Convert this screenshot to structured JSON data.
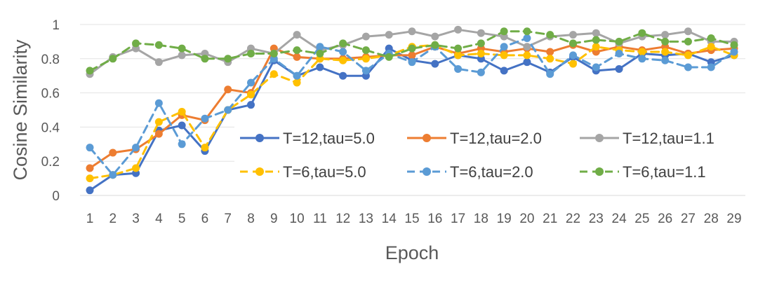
{
  "chart_data": {
    "type": "line",
    "xlabel": "Epoch",
    "ylabel": "Cosine Similarity",
    "ylim": [
      0,
      1
    ],
    "yticks": [
      "0",
      "0.2",
      "0.4",
      "0.6",
      "0.8",
      "1"
    ],
    "x": [
      1,
      2,
      3,
      4,
      5,
      6,
      7,
      8,
      9,
      10,
      11,
      12,
      13,
      14,
      15,
      16,
      17,
      18,
      19,
      20,
      21,
      22,
      23,
      24,
      25,
      26,
      27,
      28,
      29
    ],
    "grid": "horizontal",
    "legend_position": "inside, lower right",
    "series": [
      {
        "name": "T=12,tau=5.0",
        "color": "#4472C4",
        "dash": "solid",
        "values": [
          0.03,
          0.12,
          0.13,
          0.38,
          0.41,
          0.26,
          0.5,
          0.53,
          0.79,
          0.7,
          0.75,
          0.7,
          0.7,
          0.86,
          0.79,
          0.77,
          0.82,
          0.8,
          0.73,
          0.78,
          0.72,
          0.81,
          0.73,
          0.74,
          0.83,
          0.82,
          0.83,
          0.78,
          0.82
        ]
      },
      {
        "name": "T=12,tau=2.0",
        "color": "#ED7D31",
        "dash": "solid",
        "values": [
          0.16,
          0.25,
          0.27,
          0.36,
          0.47,
          0.44,
          0.62,
          0.6,
          0.86,
          0.81,
          0.8,
          0.8,
          0.81,
          0.82,
          0.82,
          0.87,
          0.83,
          0.86,
          0.84,
          0.86,
          0.84,
          0.88,
          0.84,
          0.87,
          0.85,
          0.87,
          0.83,
          0.85,
          0.86
        ]
      },
      {
        "name": "T=12,tau=1.1",
        "color": "#A5A5A5",
        "dash": "solid",
        "values": [
          0.71,
          0.81,
          0.86,
          0.78,
          0.82,
          0.83,
          0.78,
          0.86,
          0.83,
          0.94,
          0.85,
          0.88,
          0.93,
          0.94,
          0.96,
          0.93,
          0.97,
          0.95,
          0.93,
          0.87,
          0.93,
          0.94,
          0.95,
          0.89,
          0.93,
          0.94,
          0.96,
          0.9,
          0.9
        ]
      },
      {
        "name": "T=6,tau=5.0",
        "color": "#FFC000",
        "dash": "dashed",
        "values": [
          0.1,
          0.12,
          0.16,
          0.43,
          0.49,
          0.28,
          0.5,
          0.59,
          0.71,
          0.66,
          0.8,
          0.79,
          0.8,
          0.82,
          0.87,
          0.88,
          0.82,
          0.83,
          0.82,
          0.82,
          0.8,
          0.77,
          0.87,
          0.85,
          0.84,
          0.84,
          0.82,
          0.87,
          0.82
        ]
      },
      {
        "name": "T=6,tau=2.0",
        "color": "#5B9BD5",
        "dash": "dashed",
        "values": [
          0.28,
          0.12,
          0.28,
          0.54,
          0.3,
          0.45,
          0.5,
          0.66,
          0.8,
          0.7,
          0.87,
          0.84,
          0.73,
          0.83,
          0.78,
          0.87,
          0.74,
          0.72,
          0.87,
          0.92,
          0.71,
          0.82,
          0.75,
          0.83,
          0.8,
          0.79,
          0.75,
          0.75,
          0.84
        ]
      },
      {
        "name": "T=6,tau=1.1",
        "color": "#70AD47",
        "dash": "dashed",
        "values": [
          0.73,
          0.8,
          0.89,
          0.88,
          0.86,
          0.8,
          0.8,
          0.83,
          0.83,
          0.85,
          0.83,
          0.89,
          0.85,
          0.81,
          0.86,
          0.88,
          0.86,
          0.89,
          0.96,
          0.96,
          0.94,
          0.89,
          0.91,
          0.9,
          0.95,
          0.9,
          0.9,
          0.92,
          0.88
        ]
      }
    ]
  }
}
